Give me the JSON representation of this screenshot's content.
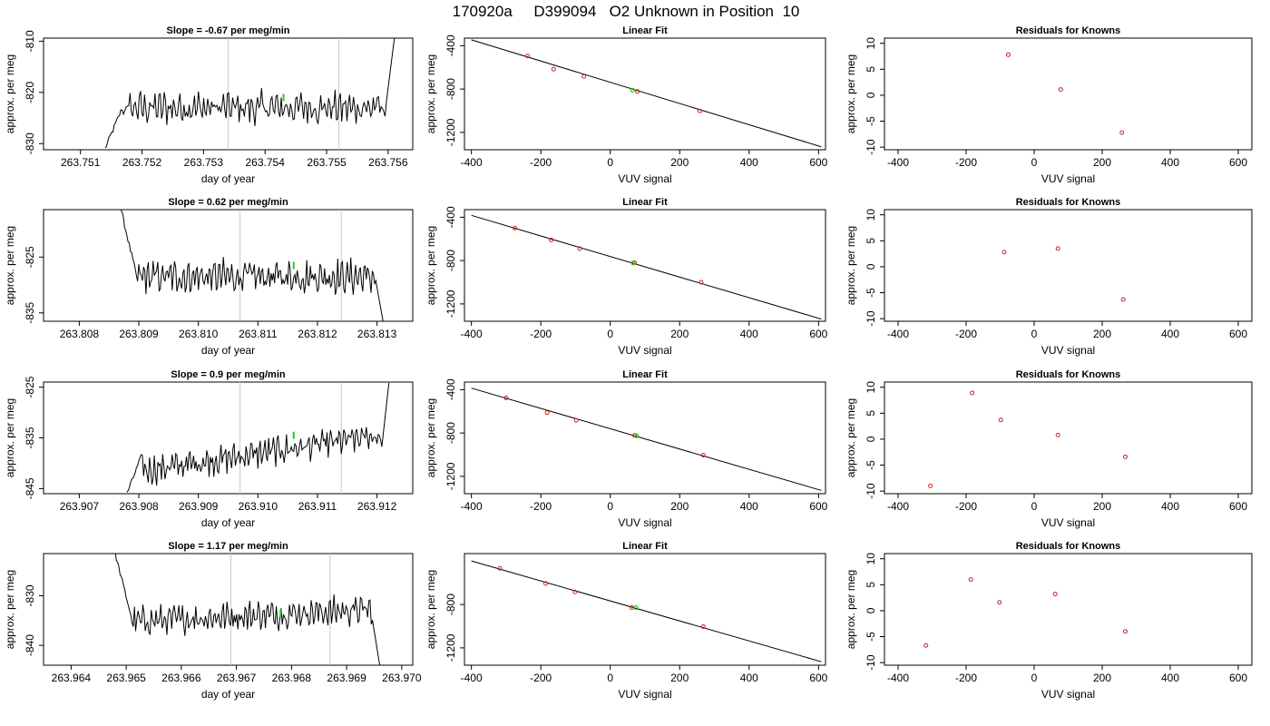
{
  "title": "170920a     D399094   O2 Unknown in Position  10",
  "chart_data": [
    {
      "type": "line",
      "row": 1,
      "panel": "time-series",
      "title": "Slope =  -0.67  per meg/min",
      "xlabel": "day of year",
      "ylabel": "approx. per meg",
      "xlim": [
        263.7504,
        263.7564
      ],
      "ylim": [
        -831.2,
        -809.4
      ],
      "xticks": [
        "263.751",
        "263.752",
        "263.753",
        "263.754",
        "263.755",
        "263.756"
      ],
      "xtick_values": [
        263.751,
        263.752,
        263.753,
        263.754,
        263.755,
        263.756
      ],
      "yticks": [
        "-830",
        "-820",
        "-810"
      ],
      "ytick_values": [
        -830,
        -820,
        -810
      ],
      "start": 263.7514,
      "end": 263.7561,
      "y_start": -831.0,
      "y_level": -823.0,
      "y_end": -809.5,
      "y_amp": 2.8,
      "vlines": [
        263.7534,
        263.7552
      ],
      "marker": {
        "x": 263.7543,
        "y": -821.0
      }
    },
    {
      "type": "scatter",
      "row": 1,
      "panel": "linear-fit",
      "title": "Linear Fit",
      "xlabel": "VUV signal",
      "ylabel": "approx. per meg",
      "xlim": [
        -420,
        620
      ],
      "ylim": [
        -1360,
        -330
      ],
      "xticks": [
        "-400",
        "-200",
        "0",
        "200",
        "400",
        "600"
      ],
      "yticks": [
        "-400",
        "-800",
        "-1200"
      ],
      "points_x": [
        -238,
        -163,
        -76,
        78,
        258
      ],
      "points_y": [
        -494,
        -617,
        -684,
        -822,
        -1002
      ],
      "fit_line": {
        "x": [
          -400,
          608
        ],
        "y": [
          -346,
          -1333
        ]
      },
      "unknown_point": {
        "x": 64,
        "y": -810
      }
    },
    {
      "type": "scatter",
      "row": 1,
      "panel": "residuals",
      "title": "Residuals for Knowns",
      "xlabel": "VUV signal",
      "ylabel": "approx. per meg",
      "xlim": [
        -440,
        640
      ],
      "ylim": [
        -10.5,
        11
      ],
      "xticks": [
        "-400",
        "-200",
        "0",
        "200",
        "400",
        "600"
      ],
      "yticks": [
        "-10",
        "-5",
        "0",
        "5",
        "10"
      ],
      "points_x": [
        -76,
        78,
        258
      ],
      "points_y": [
        7.8,
        1.1,
        -7.2
      ]
    },
    {
      "type": "line",
      "row": 2,
      "panel": "time-series",
      "title": "Slope =  0.62  per meg/min",
      "xlabel": "day of year",
      "ylabel": "approx. per meg",
      "xlim": [
        263.8074,
        263.8136
      ],
      "ylim": [
        -836.5,
        -816.5
      ],
      "xticks": [
        "263.808",
        "263.809",
        "263.810",
        "263.811",
        "263.812",
        "263.813"
      ],
      "xtick_values": [
        263.808,
        263.809,
        263.81,
        263.811,
        263.812,
        263.813
      ],
      "yticks": [
        "-835",
        "-825"
      ],
      "ytick_values": [
        -835,
        -825
      ],
      "start": 263.8087,
      "end": 263.8131,
      "y_start": -816.5,
      "y_level": -828.5,
      "y_end": -836.5,
      "y_amp": 2.6,
      "vlines": [
        263.8107,
        263.8124
      ],
      "marker": {
        "x": 263.8116,
        "y": -826.5
      }
    },
    {
      "type": "scatter",
      "row": 2,
      "panel": "linear-fit",
      "title": "Linear Fit",
      "xlabel": "VUV signal",
      "ylabel": "approx. per meg",
      "xlim": [
        -420,
        620
      ],
      "ylim": [
        -1360,
        -330
      ],
      "xticks": [
        "-400",
        "-200",
        "0",
        "200",
        "400",
        "600"
      ],
      "yticks": [
        "-400",
        "-800",
        "-1200"
      ],
      "points_x": [
        -275,
        -170,
        -88,
        70,
        262
      ],
      "points_y": [
        -500,
        -610,
        -690,
        -820,
        -1000
      ],
      "fit_line": {
        "x": [
          -400,
          608
        ],
        "y": [
          -383,
          -1340
        ]
      },
      "unknown_point": {
        "x": 66,
        "y": -822
      }
    },
    {
      "type": "scatter",
      "row": 2,
      "panel": "residuals",
      "title": "Residuals for Knowns",
      "xlabel": "VUV signal",
      "ylabel": "approx. per meg",
      "xlim": [
        -440,
        640
      ],
      "ylim": [
        -10.5,
        11
      ],
      "xticks": [
        "-400",
        "-200",
        "0",
        "200",
        "400",
        "600"
      ],
      "yticks": [
        "-10",
        "-5",
        "0",
        "5",
        "10"
      ],
      "points_x": [
        -88,
        70,
        262
      ],
      "points_y": [
        2.8,
        3.5,
        -6.3
      ]
    },
    {
      "type": "line",
      "row": 3,
      "panel": "time-series",
      "title": "Slope =  0.9  per meg/min",
      "xlabel": "day of year",
      "ylabel": "approx. per meg",
      "xlim": [
        263.9064,
        263.9126
      ],
      "ylim": [
        -846,
        -824
      ],
      "xticks": [
        "263.907",
        "263.908",
        "263.909",
        "263.910",
        "263.911",
        "263.912"
      ],
      "xtick_values": [
        263.907,
        263.908,
        263.909,
        263.91,
        263.911,
        263.912
      ],
      "yticks": [
        "-845",
        "-835",
        "-825"
      ],
      "ytick_values": [
        -845,
        -835,
        -825
      ],
      "start": 263.9078,
      "end": 263.9122,
      "y_start": -846,
      "y_level": -838.0,
      "y_end": -824.2,
      "y_amp": 2.4,
      "trend": 7.0,
      "vlines": [
        263.9097,
        263.9114
      ],
      "marker": {
        "x": 263.9106,
        "y": -834.5
      }
    },
    {
      "type": "scatter",
      "row": 3,
      "panel": "linear-fit",
      "title": "Linear Fit",
      "xlabel": "VUV signal",
      "ylabel": "approx. per meg",
      "xlim": [
        -420,
        620
      ],
      "ylim": [
        -1360,
        -330
      ],
      "xticks": [
        "-400",
        "-200",
        "0",
        "200",
        "400",
        "600"
      ],
      "yticks": [
        "-400",
        "-800",
        "-1200"
      ],
      "points_x": [
        -300,
        -182,
        -98,
        70,
        268
      ],
      "points_y": [
        -476,
        -612,
        -684,
        -822,
        -1004
      ],
      "fit_line": {
        "x": [
          -400,
          608
        ],
        "y": [
          -386,
          -1330
        ]
      },
      "unknown_point": {
        "x": 76,
        "y": -826
      }
    },
    {
      "type": "scatter",
      "row": 3,
      "panel": "residuals",
      "title": "Residuals for Knowns",
      "xlabel": "VUV signal",
      "ylabel": "approx. per meg",
      "xlim": [
        -440,
        640
      ],
      "ylim": [
        -10.5,
        11
      ],
      "xticks": [
        "-400",
        "-200",
        "0",
        "200",
        "400",
        "600"
      ],
      "yticks": [
        "-10",
        "-5",
        "0",
        "5",
        "10"
      ],
      "points_x": [
        -305,
        -182,
        -98,
        70,
        268
      ],
      "points_y": [
        -9.0,
        8.9,
        3.7,
        0.8,
        -3.4
      ]
    },
    {
      "type": "line",
      "row": 4,
      "panel": "time-series",
      "title": "Slope =  1.17  per meg/min",
      "xlabel": "day of year",
      "ylabel": "approx. per meg",
      "xlim": [
        263.9635,
        263.9702
      ],
      "ylim": [
        -844,
        -821.5
      ],
      "xticks": [
        "263.964",
        "263.965",
        "263.966",
        "263.967",
        "263.968",
        "263.969",
        "263.970"
      ],
      "xtick_values": [
        263.964,
        263.965,
        263.966,
        263.967,
        263.968,
        263.969,
        263.97
      ],
      "yticks": [
        "-840",
        "-830"
      ],
      "ytick_values": [
        -840,
        -830
      ],
      "start": 263.9648,
      "end": 263.9696,
      "y_start": -821.5,
      "y_level": -834.0,
      "y_end": -844,
      "y_amp": 2.5,
      "trend": 2.5,
      "vlines": [
        263.9669,
        263.9687
      ],
      "marker": {
        "x": 263.9678,
        "y": -833.5
      }
    },
    {
      "type": "scatter",
      "row": 4,
      "panel": "linear-fit",
      "title": "Linear Fit",
      "xlabel": "VUV signal",
      "ylabel": "approx. per meg",
      "xlim": [
        -420,
        620
      ],
      "ylim": [
        -1360,
        -330
      ],
      "xticks": [
        "-400",
        "-200",
        "0",
        "200",
        "400",
        "600"
      ],
      "yticks": [
        "-800",
        "-1200"
      ],
      "points_x": [
        -318,
        -186,
        -102,
        62,
        268
      ],
      "points_y": [
        -466,
        -606,
        -684,
        -828,
        -1004
      ],
      "fit_line": {
        "x": [
          -400,
          608
        ],
        "y": [
          -398,
          -1328
        ]
      },
      "unknown_point": {
        "x": 74,
        "y": -828
      }
    },
    {
      "type": "scatter",
      "row": 4,
      "panel": "residuals",
      "title": "Residuals for Knowns",
      "xlabel": "VUV signal",
      "ylabel": "approx. per meg",
      "xlim": [
        -440,
        640
      ],
      "ylim": [
        -10.5,
        11
      ],
      "xticks": [
        "-400",
        "-200",
        "0",
        "200",
        "400",
        "600"
      ],
      "yticks": [
        "-10",
        "-5",
        "0",
        "5",
        "10"
      ],
      "points_x": [
        -318,
        -186,
        -102,
        62,
        268
      ],
      "points_y": [
        -6.7,
        6.0,
        1.6,
        3.2,
        -4.0
      ]
    }
  ],
  "colors": {
    "known": "#cc2222",
    "unknown": "#22cc22",
    "line": "#000000",
    "vline": "#c8c8c8"
  }
}
